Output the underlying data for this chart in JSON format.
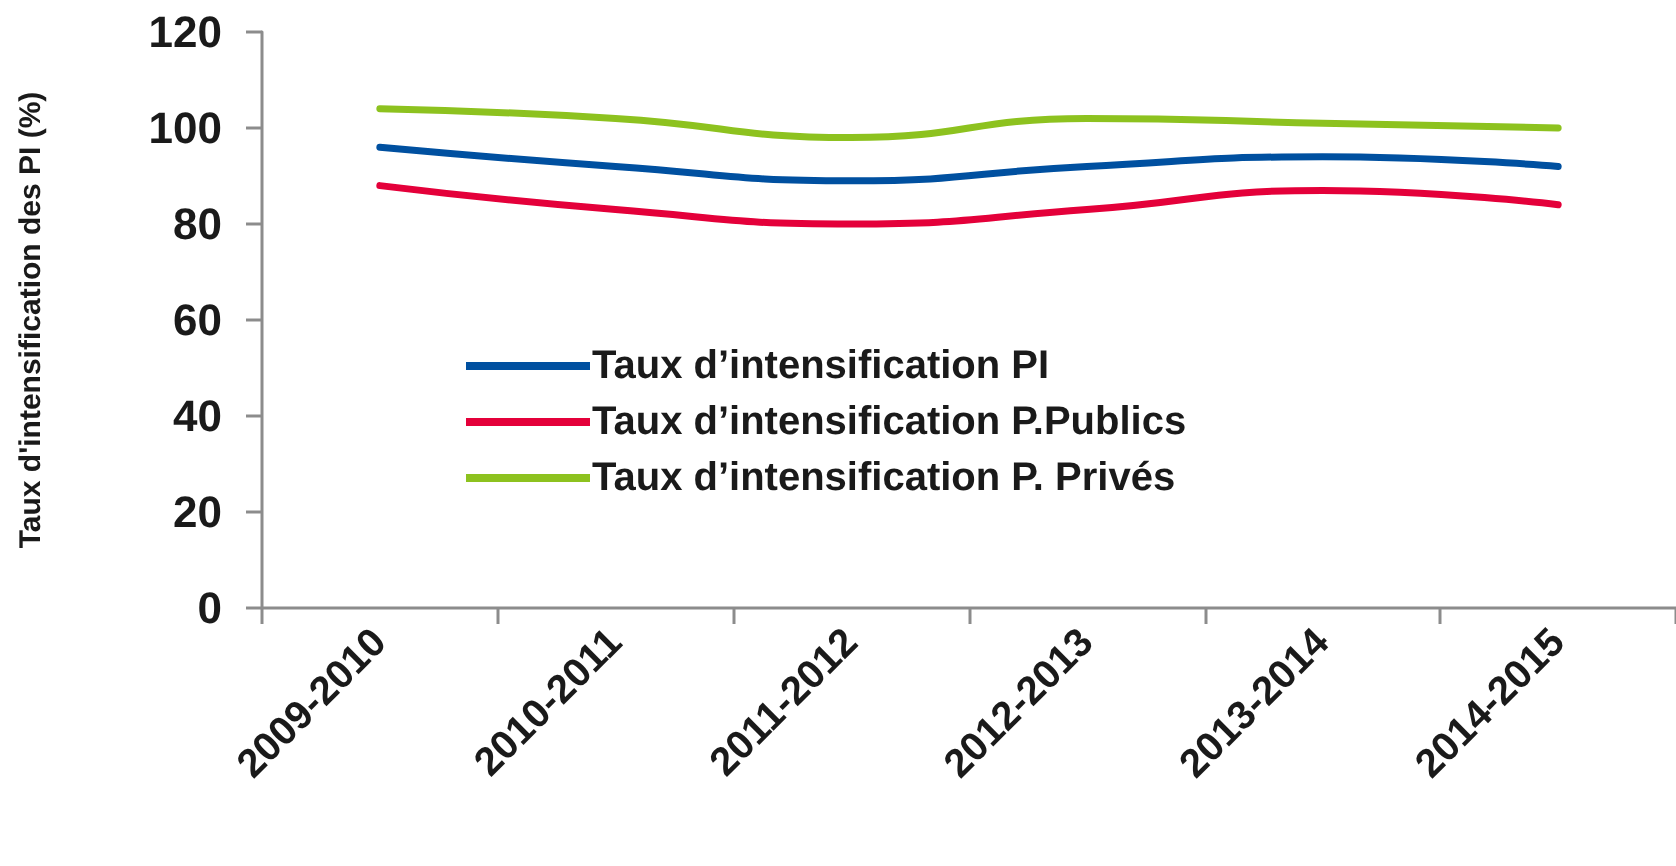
{
  "chart_data": {
    "type": "line",
    "ylabel": "Taux d'intensification des PI (%)",
    "categories": [
      "2009-2010",
      "2010-2011",
      "2011-2012",
      "2012-2013",
      "2013-2014",
      "2014-2015"
    ],
    "series": [
      {
        "name": "Taux d’intensification PI",
        "color": "#0050a0",
        "values": [
          96,
          92,
          89,
          92,
          94,
          92
        ]
      },
      {
        "name": "Taux d’intensification P.Publics",
        "color": "#e4003a",
        "values": [
          88,
          83,
          80,
          83,
          87,
          84
        ]
      },
      {
        "name": "Taux d’intensification P. Privés",
        "color": "#8dc21f",
        "values": [
          104,
          102,
          98,
          102,
          101,
          100
        ]
      }
    ],
    "ylim": [
      0,
      120
    ],
    "yticks": [
      0,
      20,
      40,
      60,
      80,
      100,
      120
    ],
    "legend": "center",
    "marker": "none"
  }
}
